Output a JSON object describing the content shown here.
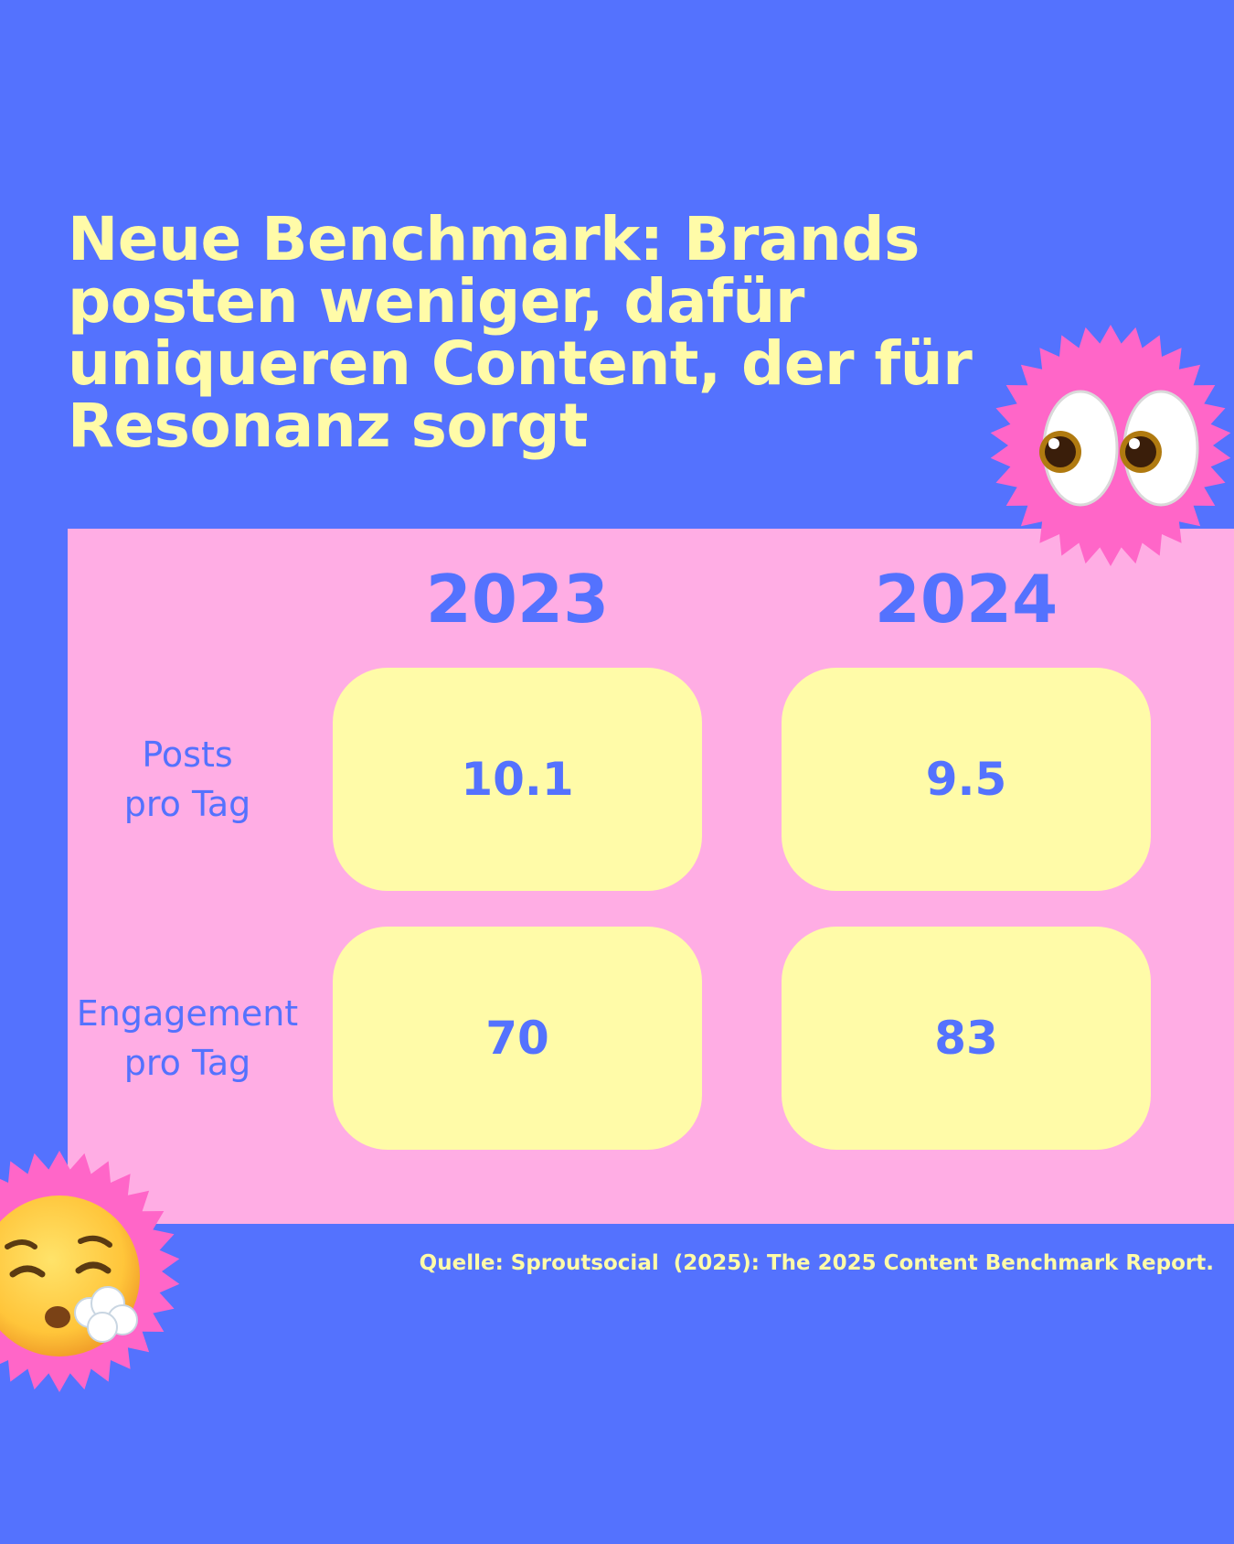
{
  "headline": "Neue Benchmark: Brands posten weniger, dafür uniqueren Content, der für Resonanz sorgt",
  "table": {
    "columns": [
      "2023",
      "2024"
    ],
    "rows": [
      {
        "label": "Posts\npro Tag",
        "values": [
          "10.1",
          "9.5"
        ]
      },
      {
        "label": "Engagement\npro Tag",
        "values": [
          "70",
          "83"
        ]
      }
    ]
  },
  "source": "Quelle: Sproutsocial  (2025): The 2025 Content Benchmark Report.",
  "decorations": {
    "top_right": "eyes-emoji-icon",
    "bottom_left": "face-exhaling-emoji-icon"
  },
  "colors": {
    "background": "#5472FE",
    "panel": "#FFADE4",
    "cell": "#FFFBA8",
    "headline": "#FFFBA8",
    "badge": "#FF66C8"
  }
}
